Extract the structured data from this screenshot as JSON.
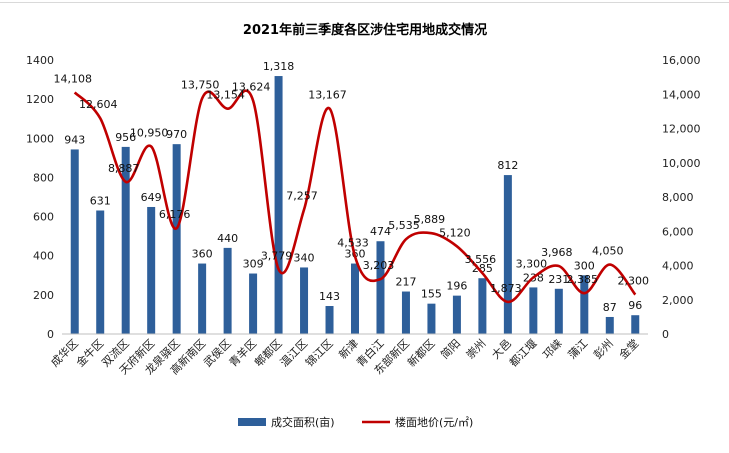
{
  "chart_data": {
    "type": "bar",
    "title": "2021年前三季度各区涉住宅用地成交情况",
    "categories": [
      "成华区",
      "金牛区",
      "双流区",
      "天府新区",
      "龙泉驿区",
      "高新南区",
      "武侯区",
      "青羊区",
      "郫都区",
      "温江区",
      "锦江区",
      "新津",
      "青白江",
      "东部新区",
      "新都区",
      "简阳",
      "崇州",
      "大邑",
      "都江堰",
      "邛崃",
      "蒲江",
      "彭州",
      "金堂"
    ],
    "series": [
      {
        "name": "成交面积(亩)",
        "type": "bar",
        "axis": "left",
        "color": "#2e5f9a",
        "values": [
          943,
          631,
          956,
          649,
          970,
          360,
          440,
          309,
          1318,
          340,
          143,
          360,
          474,
          217,
          155,
          196,
          285,
          812,
          238,
          231,
          300,
          87,
          96
        ],
        "labels": [
          "943",
          "631",
          "956",
          "649",
          "970",
          "360",
          "440",
          "309",
          "1,318",
          "340",
          "143",
          "360",
          "474",
          "217",
          "155",
          "196",
          "285",
          "812",
          "238",
          "231",
          "300",
          "87",
          "96"
        ]
      },
      {
        "name": "楼面地价(元/㎡)",
        "type": "line",
        "axis": "right",
        "color": "#c00000",
        "values": [
          14108,
          12604,
          8887,
          10950,
          6176,
          13750,
          13154,
          13624,
          3779,
          7257,
          13167,
          4533,
          3203,
          5535,
          5889,
          5120,
          3556,
          1873,
          3300,
          3968,
          2385,
          4050,
          2300
        ],
        "labels": [
          "14,108",
          "12,604",
          "8,887",
          "10,950",
          "6,176",
          "13,750",
          "13,154",
          "13,624",
          "3,779",
          "7,257",
          "13,167",
          "4,533",
          "3,203",
          "5,535",
          "5,889",
          "5,120",
          "3,556",
          "1,873",
          "3,300",
          "3,968",
          "2,385",
          "4,050",
          "2,300"
        ]
      }
    ],
    "y_left": {
      "min": 0,
      "max": 1400,
      "ticks": [
        "0",
        "200",
        "400",
        "600",
        "800",
        "1000",
        "1200",
        "1400"
      ]
    },
    "y_right": {
      "min": 0,
      "max": 16000,
      "ticks": [
        "0",
        "2,000",
        "4,000",
        "6,000",
        "8,000",
        "10,000",
        "12,000",
        "14,000",
        "16,000"
      ]
    },
    "grid": false,
    "legend_position": "bottom"
  }
}
